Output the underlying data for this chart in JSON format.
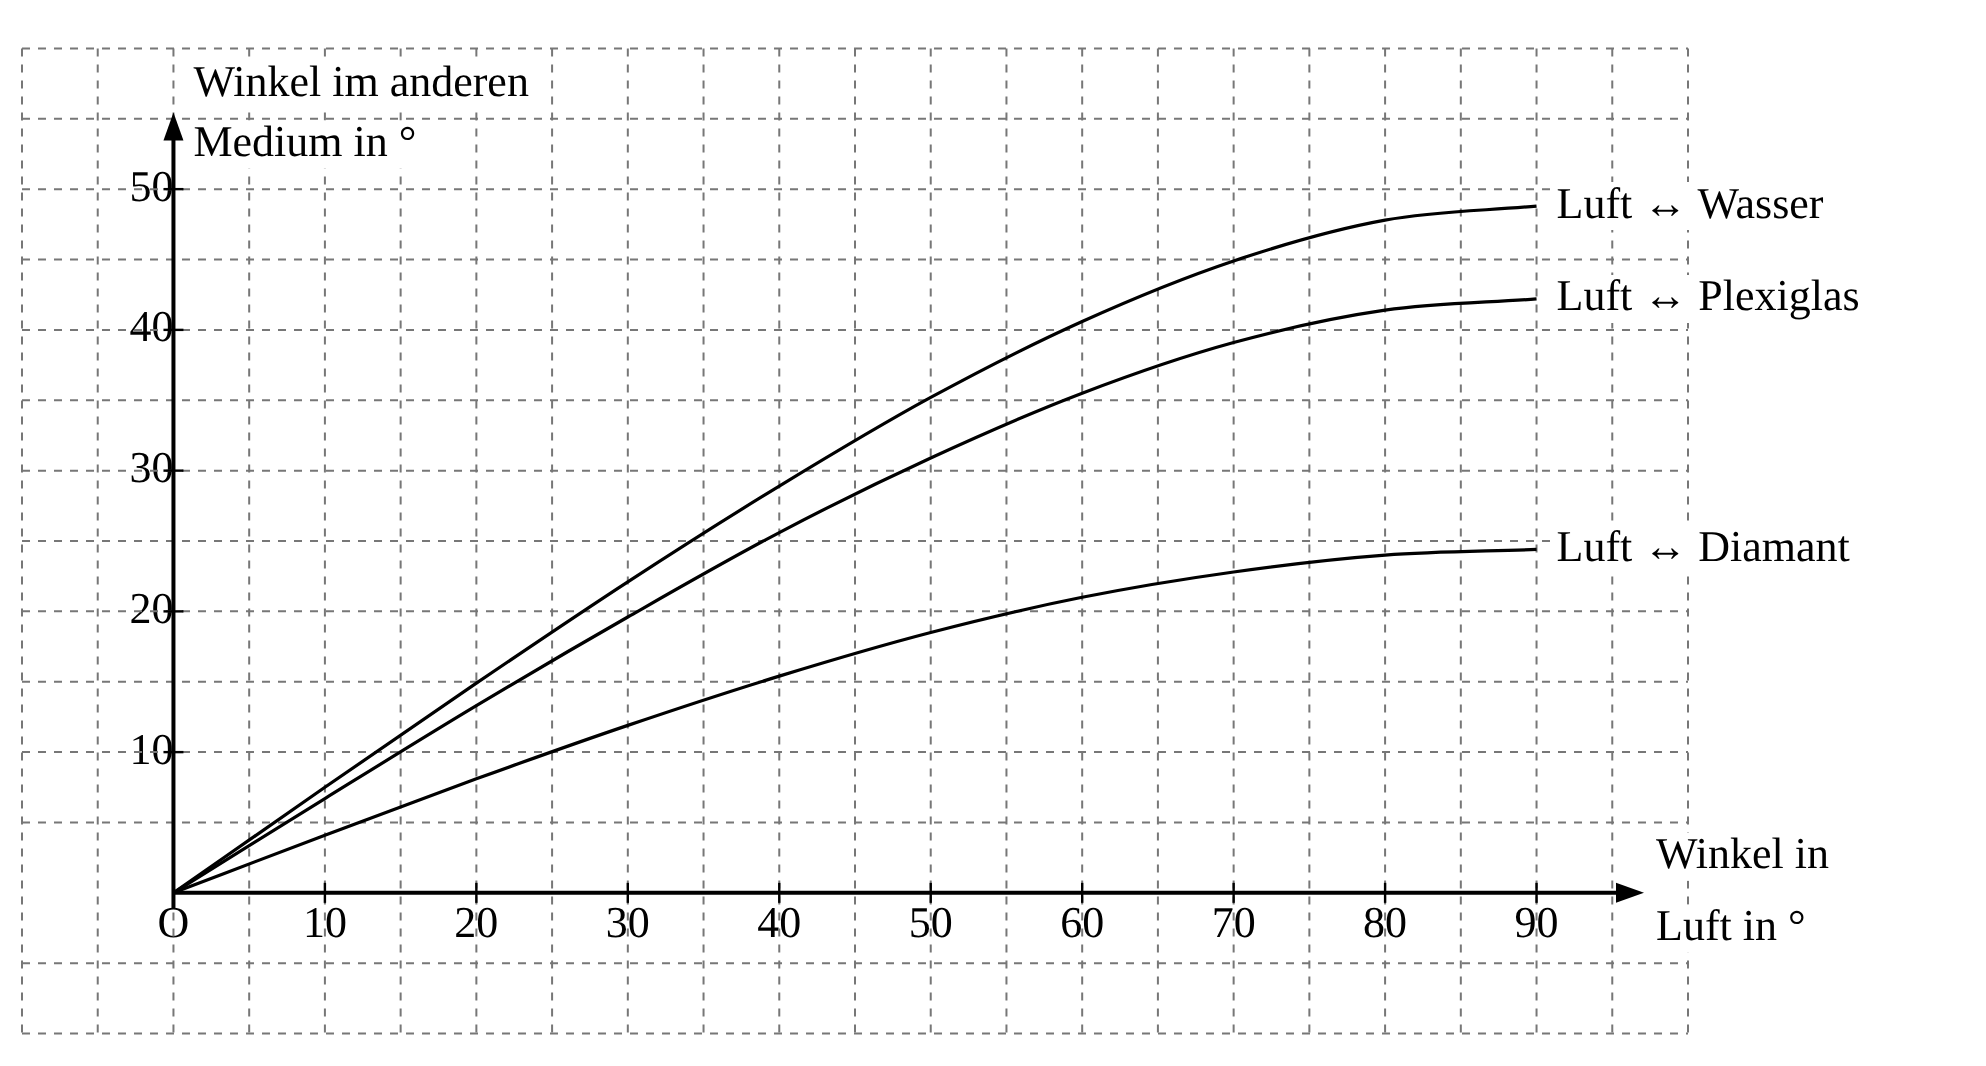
{
  "chart_data": {
    "type": "line",
    "xlabel": "Winkel in\nLuft in °",
    "ylabel": "Winkel im anderen\nMedium in °",
    "xlim": [
      -10,
      100
    ],
    "ylim": [
      -10,
      60
    ],
    "xticks": [
      {
        "value": -10,
        "label": null
      },
      {
        "value": -5,
        "label": null
      },
      {
        "value": 0,
        "label": "O"
      },
      {
        "value": 5,
        "label": null
      },
      10,
      {
        "value": 15,
        "label": null
      },
      20,
      {
        "value": 25,
        "label": null
      },
      30,
      {
        "value": 35,
        "label": null
      },
      40,
      {
        "value": 45,
        "label": null
      },
      50,
      {
        "value": 55,
        "label": null
      },
      60,
      {
        "value": 65,
        "label": null
      },
      70,
      {
        "value": 75,
        "label": null
      },
      80,
      {
        "value": 85,
        "label": null
      },
      90,
      {
        "value": 95,
        "label": null
      },
      {
        "value": 100,
        "label": null
      }
    ],
    "yticks": [
      {
        "value": -10,
        "label": null
      },
      {
        "value": -5,
        "label": null
      },
      {
        "value": 5,
        "label": null
      },
      10,
      {
        "value": 15,
        "label": null
      },
      20,
      {
        "value": 25,
        "label": null
      },
      30,
      {
        "value": 35,
        "label": null
      },
      40,
      {
        "value": 45,
        "label": null
      },
      50,
      {
        "value": 55,
        "label": null
      },
      {
        "value": 60,
        "label": null
      }
    ],
    "grid": true,
    "legend": false,
    "marker": "none",
    "line_style": "solid",
    "x": [
      0,
      10,
      20,
      30,
      40,
      50,
      60,
      70,
      80,
      90
    ],
    "series": [
      {
        "name": "Luft ↔ Wasser",
        "color": "#000000",
        "values": [
          0,
          7.5,
          14.9,
          22.1,
          28.9,
          35.2,
          40.6,
          44.9,
          47.8,
          48.8
        ]
      },
      {
        "name": "Luft ↔ Plexiglas",
        "color": "#000000",
        "values": [
          0,
          6.7,
          13.3,
          19.6,
          25.6,
          30.9,
          35.5,
          39.1,
          41.4,
          42.2
        ]
      },
      {
        "name": "Luft ↔ Diamant",
        "color": "#000000",
        "values": [
          0,
          4.1,
          8.1,
          11.9,
          15.4,
          18.5,
          21.0,
          22.8,
          24.0,
          24.4
        ]
      }
    ]
  }
}
